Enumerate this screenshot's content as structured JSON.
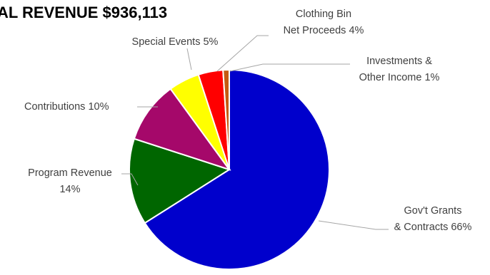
{
  "chart_data": {
    "type": "pie",
    "title": "AL REVENUE  $936,113",
    "start_angle_deg": 0,
    "direction": "clockwise",
    "slices": [
      {
        "label_lines": [
          "Gov't Grants",
          "& Contracts 66%"
        ],
        "value": 66,
        "color": "#0000cc"
      },
      {
        "label_lines": [
          "Program Revenue",
          "14%"
        ],
        "value": 14,
        "color": "#006600"
      },
      {
        "label_lines": [
          "Contributions 10%"
        ],
        "value": 10,
        "color": "#a5086a"
      },
      {
        "label_lines": [
          "Special Events 5%"
        ],
        "value": 5,
        "color": "#ffff00"
      },
      {
        "label_lines": [
          "Clothing Bin",
          "Net Proceeds 4%"
        ],
        "value": 4,
        "color": "#ff0000"
      },
      {
        "label_lines": [
          "Investments &",
          "Other Income 1%"
        ],
        "value": 1,
        "color": "#c55a11"
      }
    ]
  }
}
